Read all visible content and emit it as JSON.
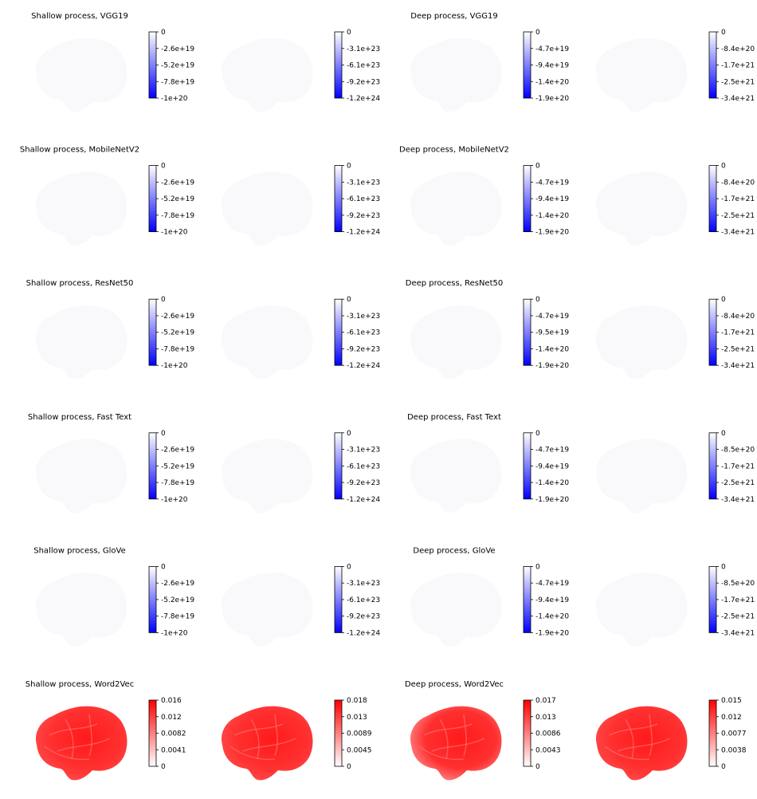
{
  "figure": {
    "colors": {
      "negative_max": "#0000ff",
      "positive_max": "#ff0000",
      "zero": "#ffffff",
      "brain_faint": "#f9f9fb"
    }
  },
  "chart_data": [
    {
      "type": "heatmap",
      "title": "Shallow process, VGG19",
      "colormap": "white-blue",
      "maps": [
        {
          "colorbar_ticks": [
            "0",
            "-2.6e+19",
            "-5.2e+19",
            "-7.8e+19",
            "-1e+20"
          ],
          "range": [
            -1e+20,
            0
          ]
        },
        {
          "colorbar_ticks": [
            "0",
            "-3.1e+23",
            "-6.1e+23",
            "-9.2e+23",
            "-1.2e+24"
          ],
          "range": [
            -1.2e+24,
            0
          ]
        }
      ]
    },
    {
      "type": "heatmap",
      "title": "Deep process, VGG19",
      "colormap": "white-blue",
      "maps": [
        {
          "colorbar_ticks": [
            "0",
            "-4.7e+19",
            "-9.4e+19",
            "-1.4e+20",
            "-1.9e+20"
          ],
          "range": [
            -1.9e+20,
            0
          ]
        },
        {
          "colorbar_ticks": [
            "0",
            "-8.4e+20",
            "-1.7e+21",
            "-2.5e+21",
            "-3.4e+21"
          ],
          "range": [
            -3.4e+21,
            0
          ]
        }
      ]
    },
    {
      "type": "heatmap",
      "title": "Shallow process, MobileNetV2",
      "colormap": "white-blue",
      "maps": [
        {
          "colorbar_ticks": [
            "0",
            "-2.6e+19",
            "-5.2e+19",
            "-7.8e+19",
            "-1e+20"
          ],
          "range": [
            -1e+20,
            0
          ]
        },
        {
          "colorbar_ticks": [
            "0",
            "-3.1e+23",
            "-6.1e+23",
            "-9.2e+23",
            "-1.2e+24"
          ],
          "range": [
            -1.2e+24,
            0
          ]
        }
      ]
    },
    {
      "type": "heatmap",
      "title": "Deep process, MobileNetV2",
      "colormap": "white-blue",
      "maps": [
        {
          "colorbar_ticks": [
            "0",
            "-4.7e+19",
            "-9.4e+19",
            "-1.4e+20",
            "-1.9e+20"
          ],
          "range": [
            -1.9e+20,
            0
          ]
        },
        {
          "colorbar_ticks": [
            "0",
            "-8.4e+20",
            "-1.7e+21",
            "-2.5e+21",
            "-3.4e+21"
          ],
          "range": [
            -3.4e+21,
            0
          ]
        }
      ]
    },
    {
      "type": "heatmap",
      "title": "Shallow process, ResNet50",
      "colormap": "white-blue",
      "maps": [
        {
          "colorbar_ticks": [
            "0",
            "-2.6e+19",
            "-5.2e+19",
            "-7.8e+19",
            "-1e+20"
          ],
          "range": [
            -1e+20,
            0
          ]
        },
        {
          "colorbar_ticks": [
            "0",
            "-3.1e+23",
            "-6.1e+23",
            "-9.2e+23",
            "-1.2e+24"
          ],
          "range": [
            -1.2e+24,
            0
          ]
        }
      ]
    },
    {
      "type": "heatmap",
      "title": "Deep process, ResNet50",
      "colormap": "white-blue",
      "maps": [
        {
          "colorbar_ticks": [
            "0",
            "-4.7e+19",
            "-9.5e+19",
            "-1.4e+20",
            "-1.9e+20"
          ],
          "range": [
            -1.9e+20,
            0
          ]
        },
        {
          "colorbar_ticks": [
            "0",
            "-8.4e+20",
            "-1.7e+21",
            "-2.5e+21",
            "-3.4e+21"
          ],
          "range": [
            -3.4e+21,
            0
          ]
        }
      ]
    },
    {
      "type": "heatmap",
      "title": "Shallow process, Fast Text",
      "colormap": "white-blue",
      "maps": [
        {
          "colorbar_ticks": [
            "0",
            "-2.6e+19",
            "-5.2e+19",
            "-7.8e+19",
            "-1e+20"
          ],
          "range": [
            -1e+20,
            0
          ]
        },
        {
          "colorbar_ticks": [
            "0",
            "-3.1e+23",
            "-6.1e+23",
            "-9.2e+23",
            "-1.2e+24"
          ],
          "range": [
            -1.2e+24,
            0
          ]
        }
      ]
    },
    {
      "type": "heatmap",
      "title": "Deep process, Fast Text",
      "colormap": "white-blue",
      "maps": [
        {
          "colorbar_ticks": [
            "0",
            "-4.7e+19",
            "-9.4e+19",
            "-1.4e+20",
            "-1.9e+20"
          ],
          "range": [
            -1.9e+20,
            0
          ]
        },
        {
          "colorbar_ticks": [
            "0",
            "-8.5e+20",
            "-1.7e+21",
            "-2.5e+21",
            "-3.4e+21"
          ],
          "range": [
            -3.4e+21,
            0
          ]
        }
      ]
    },
    {
      "type": "heatmap",
      "title": "Shallow process, GloVe",
      "colormap": "white-blue",
      "maps": [
        {
          "colorbar_ticks": [
            "0",
            "-2.6e+19",
            "-5.2e+19",
            "-7.8e+19",
            "-1e+20"
          ],
          "range": [
            -1e+20,
            0
          ]
        },
        {
          "colorbar_ticks": [
            "0",
            "-3.1e+23",
            "-6.1e+23",
            "-9.2e+23",
            "-1.2e+24"
          ],
          "range": [
            -1.2e+24,
            0
          ]
        }
      ]
    },
    {
      "type": "heatmap",
      "title": "Deep process, GloVe",
      "colormap": "white-blue",
      "maps": [
        {
          "colorbar_ticks": [
            "0",
            "-4.7e+19",
            "-9.4e+19",
            "-1.4e+20",
            "-1.9e+20"
          ],
          "range": [
            -1.9e+20,
            0
          ]
        },
        {
          "colorbar_ticks": [
            "0",
            "-8.5e+20",
            "-1.7e+21",
            "-2.5e+21",
            "-3.4e+21"
          ],
          "range": [
            -3.4e+21,
            0
          ]
        }
      ]
    },
    {
      "type": "heatmap",
      "title": "Shallow process, Word2Vec",
      "colormap": "white-red",
      "maps": [
        {
          "colorbar_ticks": [
            "0.016",
            "0.012",
            "0.0082",
            "0.0041",
            "0"
          ],
          "range": [
            0,
            0.016
          ]
        },
        {
          "colorbar_ticks": [
            "0.018",
            "0.013",
            "0.0089",
            "0.0045",
            "0"
          ],
          "range": [
            0,
            0.018
          ]
        }
      ]
    },
    {
      "type": "heatmap",
      "title": "Deep process, Word2Vec",
      "colormap": "white-red",
      "maps": [
        {
          "colorbar_ticks": [
            "0.017",
            "0.013",
            "0.0086",
            "0.0043",
            "0"
          ],
          "range": [
            0,
            0.017
          ]
        },
        {
          "colorbar_ticks": [
            "0.015",
            "0.012",
            "0.0077",
            "0.0038",
            "0"
          ],
          "range": [
            0,
            0.015
          ]
        }
      ]
    }
  ]
}
